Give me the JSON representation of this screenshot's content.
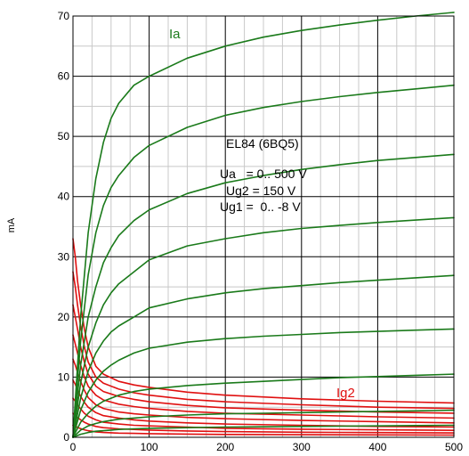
{
  "chart_data": {
    "type": "line",
    "ylabel": "mA",
    "xlim": [
      0,
      500
    ],
    "ylim": [
      0,
      70
    ],
    "x_ticks": [
      0,
      100,
      200,
      300,
      400,
      500
    ],
    "y_ticks": [
      0,
      10,
      20,
      30,
      40,
      50,
      60,
      70
    ],
    "grid": true,
    "annotations": [
      "EL84 (6BQ5)",
      "Ua   = 0.. 500 V",
      "Ug2 = 150 V",
      "Ug1 =  0.. -8 V"
    ],
    "colors": {
      "Ia": "#1a7a1a",
      "Ig2": "#e01010",
      "grid_major": "#000000",
      "grid_minor": "#c8c8c8"
    },
    "families": [
      {
        "name": "Ia",
        "color": "#1a7a1a",
        "series": [
          {
            "x": [
              0,
              10,
              20,
              30,
              40,
              50,
              60,
              80,
              100,
              150,
              200,
              250,
              300,
              350,
              400,
              450,
              500
            ],
            "y": [
              0,
              20,
              34,
              43,
              49,
              53,
              55.5,
              58.5,
              60,
              63,
              65,
              66.5,
              67.6,
              68.5,
              69.3,
              70,
              70.6
            ]
          },
          {
            "x": [
              0,
              10,
              20,
              30,
              40,
              50,
              60,
              80,
              100,
              150,
              200,
              250,
              300,
              350,
              400,
              450,
              500
            ],
            "y": [
              0,
              16,
              27,
              34,
              38.5,
              41.5,
              43.5,
              46.5,
              48.5,
              51.5,
              53.5,
              54.8,
              55.8,
              56.6,
              57.3,
              57.9,
              58.5
            ]
          },
          {
            "x": [
              0,
              10,
              20,
              30,
              40,
              50,
              60,
              80,
              100,
              150,
              200,
              250,
              300,
              350,
              400,
              450,
              500
            ],
            "y": [
              0,
              12,
              20,
              25,
              29,
              31.5,
              33.5,
              36,
              37.8,
              40.5,
              42.3,
              43.5,
              44.5,
              45.3,
              46,
              46.5,
              47
            ]
          },
          {
            "x": [
              0,
              10,
              20,
              30,
              40,
              50,
              60,
              80,
              100,
              150,
              200,
              250,
              300,
              350,
              400,
              450,
              500
            ],
            "y": [
              0,
              9,
              15,
              19,
              22,
              24,
              25.5,
              27.5,
              29.5,
              31.8,
              33,
              34,
              34.7,
              35.2,
              35.7,
              36.1,
              36.5
            ]
          },
          {
            "x": [
              0,
              10,
              20,
              30,
              40,
              50,
              60,
              80,
              100,
              150,
              200,
              250,
              300,
              350,
              400,
              450,
              500
            ],
            "y": [
              0,
              6.5,
              11,
              14,
              16,
              17.5,
              18.5,
              20,
              21.5,
              23,
              24,
              24.7,
              25.2,
              25.7,
              26.1,
              26.5,
              26.9
            ]
          },
          {
            "x": [
              0,
              10,
              20,
              30,
              40,
              50,
              60,
              80,
              100,
              150,
              200,
              250,
              300,
              350,
              400,
              450,
              500
            ],
            "y": [
              0,
              4.5,
              7.5,
              9.5,
              11,
              12,
              12.8,
              14,
              14.8,
              15.8,
              16.4,
              16.8,
              17.1,
              17.4,
              17.6,
              17.8,
              18
            ]
          },
          {
            "x": [
              0,
              10,
              20,
              30,
              40,
              50,
              60,
              80,
              100,
              150,
              200,
              250,
              300,
              350,
              400,
              450,
              500
            ],
            "y": [
              0,
              2.5,
              4,
              5.2,
              6,
              6.5,
              7,
              7.6,
              8,
              8.6,
              9,
              9.3,
              9.6,
              9.9,
              10.1,
              10.3,
              10.5
            ]
          },
          {
            "x": [
              0,
              10,
              20,
              30,
              40,
              50,
              60,
              80,
              100,
              150,
              200,
              250,
              300,
              350,
              400,
              450,
              500
            ],
            "y": [
              0,
              1.2,
              1.9,
              2.3,
              2.6,
              2.8,
              3,
              3.2,
              3.4,
              3.7,
              3.9,
              4,
              4.1,
              4.2,
              4.3,
              4.4,
              4.5
            ]
          },
          {
            "x": [
              0,
              10,
              20,
              30,
              40,
              50,
              60,
              80,
              100,
              150,
              200,
              250,
              300,
              350,
              400,
              450,
              500
            ],
            "y": [
              0,
              0.5,
              0.8,
              1,
              1.1,
              1.2,
              1.3,
              1.4,
              1.5,
              1.6,
              1.7,
              1.75,
              1.8,
              1.85,
              1.9,
              1.95,
              2
            ]
          }
        ]
      },
      {
        "name": "Ig2",
        "color": "#e01010",
        "series": [
          {
            "x": [
              0,
              3,
              6,
              10,
              15,
              20,
              30,
              40,
              60,
              80,
              100,
              150,
              200,
              300,
              400,
              500
            ],
            "y": [
              33,
              30,
              26,
              22,
              18,
              15,
              11.8,
              10.5,
              9.3,
              8.7,
              8.3,
              7.5,
              7,
              6.4,
              6,
              5.7
            ]
          },
          {
            "x": [
              0,
              3,
              6,
              10,
              15,
              20,
              30,
              40,
              60,
              80,
              100,
              150,
              200,
              300,
              400,
              500
            ],
            "y": [
              27.5,
              25,
              22,
              18.5,
              15,
              12.5,
              10,
              9,
              8,
              7.4,
              7,
              6.3,
              5.9,
              5.4,
              5,
              4.8
            ]
          },
          {
            "x": [
              0,
              3,
              6,
              10,
              15,
              20,
              30,
              40,
              60,
              80,
              100,
              150,
              200,
              300,
              400,
              500
            ],
            "y": [
              22,
              20,
              18,
              15,
              12.5,
              10.5,
              8.5,
              7.6,
              6.8,
              6.3,
              5.9,
              5.3,
              4.9,
              4.5,
              4.2,
              4
            ]
          },
          {
            "x": [
              0,
              3,
              6,
              10,
              15,
              20,
              30,
              40,
              60,
              80,
              100,
              150,
              200,
              300,
              400,
              500
            ],
            "y": [
              17,
              15.5,
              14,
              12,
              10,
              8.5,
              7,
              6.2,
              5.5,
              5.1,
              4.8,
              4.3,
              4,
              3.7,
              3.4,
              3.2
            ]
          },
          {
            "x": [
              0,
              3,
              6,
              10,
              15,
              20,
              30,
              40,
              60,
              80,
              100,
              150,
              200,
              300,
              400,
              500
            ],
            "y": [
              13,
              12,
              10.8,
              9.3,
              7.8,
              6.6,
              5.4,
              4.8,
              4.2,
              3.9,
              3.7,
              3.3,
              3.1,
              2.8,
              2.6,
              2.4
            ]
          },
          {
            "x": [
              0,
              3,
              6,
              10,
              15,
              20,
              30,
              40,
              60,
              80,
              100,
              150,
              200,
              300,
              400,
              500
            ],
            "y": [
              9.5,
              8.8,
              7.9,
              6.8,
              5.8,
              5,
              4.1,
              3.6,
              3.2,
              2.9,
              2.7,
              2.4,
              2.2,
              2,
              1.8,
              1.7
            ]
          },
          {
            "x": [
              0,
              3,
              6,
              10,
              15,
              20,
              30,
              40,
              60,
              80,
              100,
              150,
              200,
              300,
              400,
              500
            ],
            "y": [
              6.5,
              6,
              5.4,
              4.7,
              4,
              3.5,
              2.9,
              2.5,
              2.2,
              2,
              1.9,
              1.7,
              1.5,
              1.35,
              1.25,
              1.15
            ]
          },
          {
            "x": [
              0,
              3,
              6,
              10,
              15,
              20,
              30,
              40,
              60,
              80,
              100,
              150,
              200,
              300,
              400,
              500
            ],
            "y": [
              4,
              3.7,
              3.3,
              2.9,
              2.5,
              2.2,
              1.8,
              1.6,
              1.4,
              1.3,
              1.2,
              1.05,
              0.95,
              0.85,
              0.78,
              0.72
            ]
          },
          {
            "x": [
              0,
              3,
              6,
              10,
              15,
              20,
              30,
              40,
              60,
              80,
              100,
              150,
              200,
              300,
              400,
              500
            ],
            "y": [
              2,
              1.85,
              1.65,
              1.45,
              1.25,
              1.1,
              0.9,
              0.8,
              0.7,
              0.65,
              0.6,
              0.53,
              0.48,
              0.43,
              0.4,
              0.37
            ]
          }
        ]
      }
    ]
  }
}
